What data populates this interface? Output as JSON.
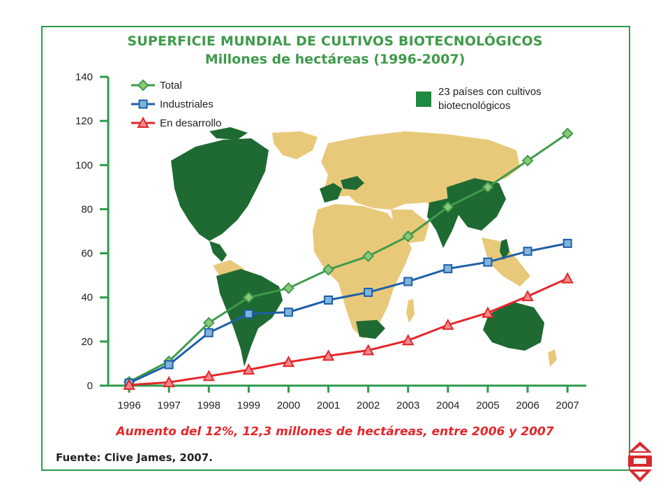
{
  "title_line1": "SUPERFICIE MUNDIAL DE CULTIVOS BIOTECNOLÓGICOS",
  "title_line2": "Millones de hectáreas (1996-2007)",
  "caption": "Aumento del 12%, 12,3 millones de hectáreas, entre 2006 y 2007",
  "source": "Fuente: Clive James, 2007.",
  "map_legend": "23 países con cultivos biotecnológicos",
  "map_legend_line1": "23 países con cultivos",
  "map_legend_line2": "biotecnológicos",
  "colors": {
    "total": "#3f9a4a",
    "industriales": "#1f5fa8",
    "desarrollo": "#e5262b",
    "axis": "#2e9a4b",
    "map_biotech": "#1e6a32",
    "map_other": "#e8c97a"
  },
  "chart_data": {
    "type": "line",
    "title": "SUPERFICIE MUNDIAL DE CULTIVOS BIOTECNOLÓGICOS",
    "subtitle": "Millones de hectáreas (1996-2007)",
    "x": [
      "1996",
      "1997",
      "1998",
      "1999",
      "2000",
      "2001",
      "2002",
      "2003",
      "2004",
      "2005",
      "2006",
      "2007"
    ],
    "ylim": [
      0,
      140
    ],
    "yticks": [
      0,
      20,
      40,
      60,
      80,
      100,
      120,
      140
    ],
    "xlabel": "",
    "ylabel": "",
    "legend_position": "top-left",
    "grid": false,
    "series": [
      {
        "name": "Total",
        "marker": "diamond",
        "values": [
          1.7,
          11,
          28.5,
          40,
          44.2,
          52.6,
          58.7,
          67.7,
          81,
          90,
          102,
          114.3
        ]
      },
      {
        "name": "Industriales",
        "marker": "square",
        "values": [
          1.2,
          9.5,
          24,
          32.5,
          33.3,
          38.8,
          42.3,
          47.2,
          53,
          56,
          60.9,
          64.5
        ]
      },
      {
        "name": "En desarrollo",
        "marker": "triangle",
        "values": [
          0.3,
          1.5,
          4.3,
          7.2,
          10.7,
          13.5,
          16,
          20.5,
          27.5,
          33,
          40.5,
          48.6
        ]
      }
    ]
  }
}
